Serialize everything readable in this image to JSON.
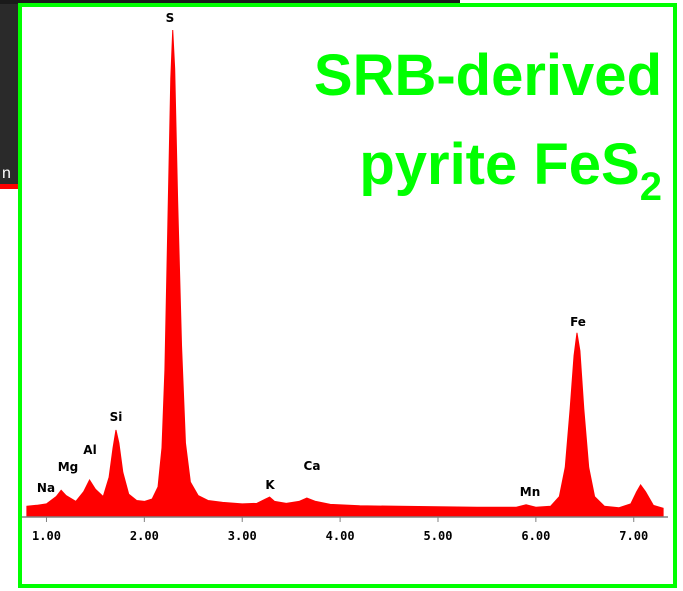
{
  "chart_data": {
    "type": "area",
    "title": {
      "line1": "SRB-derived",
      "line2": "pyrite FeS",
      "subscript": "2"
    },
    "background_text": "n",
    "color": "#ff0000",
    "x": [
      0.8,
      0.9,
      1.0,
      1.1,
      1.15,
      1.2,
      1.3,
      1.38,
      1.44,
      1.5,
      1.58,
      1.64,
      1.68,
      1.71,
      1.74,
      1.78,
      1.84,
      1.92,
      2.0,
      2.08,
      2.14,
      2.18,
      2.21,
      2.24,
      2.27,
      2.29,
      2.31,
      2.34,
      2.38,
      2.42,
      2.47,
      2.55,
      2.65,
      2.8,
      3.0,
      3.15,
      3.24,
      3.28,
      3.33,
      3.45,
      3.58,
      3.66,
      3.75,
      3.9,
      4.2,
      4.6,
      5.0,
      5.4,
      5.8,
      5.9,
      6.0,
      6.15,
      6.24,
      6.3,
      6.35,
      6.39,
      6.42,
      6.45,
      6.49,
      6.54,
      6.6,
      6.7,
      6.85,
      6.97,
      7.03,
      7.07,
      7.12,
      7.2,
      7.3
    ],
    "values": [
      2.0,
      2.2,
      2.5,
      4.0,
      5.3,
      4.2,
      3.0,
      5.0,
      7.4,
      5.5,
      4.0,
      8,
      14,
      17.7,
      15,
      9,
      4.5,
      3.2,
      3.0,
      3.5,
      6,
      14,
      30,
      60,
      90,
      100,
      92,
      65,
      35,
      15,
      7,
      4.2,
      3.2,
      2.8,
      2.5,
      2.6,
      3.5,
      3.9,
      3.0,
      2.6,
      3.0,
      3.7,
      3.0,
      2.4,
      2.1,
      2.0,
      1.9,
      1.8,
      1.8,
      2.3,
      1.8,
      2.0,
      4,
      10,
      22,
      33,
      37.7,
      34,
      22,
      10,
      4,
      2.0,
      1.7,
      2.5,
      5,
      6.4,
      5,
      2.2,
      1.6
    ],
    "peak_labels": [
      "Na",
      "Mg",
      "Al",
      "Si",
      "S",
      "K",
      "Ca",
      "Mn",
      "Fe"
    ],
    "xlim": [
      0.75,
      7.35
    ],
    "ylim": [
      0,
      100
    ],
    "xticks": [
      {
        "value": 1,
        "label": "1.00"
      },
      {
        "value": 2,
        "label": "2.00"
      },
      {
        "value": 3,
        "label": "3.00"
      },
      {
        "value": 4,
        "label": "4.00"
      },
      {
        "value": 5,
        "label": "5.00"
      },
      {
        "value": 6,
        "label": "6.00"
      },
      {
        "value": 7,
        "label": "7.00"
      }
    ]
  }
}
